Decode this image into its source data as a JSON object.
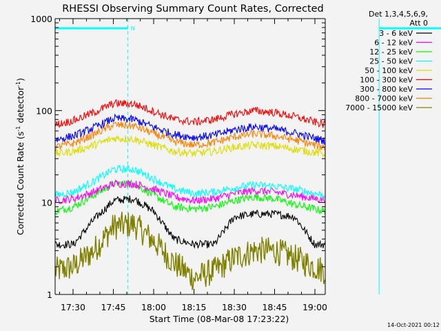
{
  "chart_data": {
    "type": "line",
    "title": "RHESSI Observing Summary Count Rates, Corrected",
    "xlabel": "Start Time (08-Mar-08 17:23:22)",
    "ylabel_main": "Corrected Count Rate (s",
    "ylabel_sup1": "-1",
    "ylabel_mid": " detector",
    "ylabel_sup2": "-1",
    "ylabel_end": ")",
    "ylabel_plain": "Corrected Count Rate (s-1 detector-1)",
    "yscale": "log",
    "ylim": [
      1,
      1000
    ],
    "xlim_minutes": [
      -4.6,
      62.6
    ],
    "x_ticks": [
      {
        "label": "17:30",
        "minutes": 0
      },
      {
        "label": "17:45",
        "minutes": 15
      },
      {
        "label": "18:00",
        "minutes": 30
      },
      {
        "label": "18:15",
        "minutes": 45
      },
      {
        "label": "18:30",
        "minutes": 60
      },
      {
        "label": "18:45",
        "minutes": 75
      },
      {
        "label": "19:00",
        "minutes": 90
      }
    ],
    "y_ticks": [
      {
        "label": "1",
        "value": 1
      },
      {
        "label": "10",
        "value": 10
      },
      {
        "label": "100",
        "value": 100
      },
      {
        "label": "1000",
        "value": 1000
      }
    ],
    "legend_title": [
      "Det 1,3,4,5,6,9,",
      "Att 0"
    ],
    "legend_position": "top-right",
    "series": [
      {
        "name": "3 - 6 keV",
        "color": "#000000",
        "x": [
          -4.6,
          0,
          5,
          10,
          15,
          20,
          25,
          30,
          35,
          40,
          45,
          50,
          55,
          60,
          62.6
        ],
        "values": [
          3.5,
          3.5,
          6.5,
          10.5,
          11,
          8,
          4,
          3.5,
          3.5,
          7,
          7.5,
          7.5,
          7,
          3.5,
          3.5
        ]
      },
      {
        "name": "6 - 12 keV",
        "color": "#ff00ff",
        "x": [
          -4.6,
          0,
          5,
          10,
          15,
          20,
          25,
          30,
          35,
          40,
          45,
          50,
          55,
          60,
          62.6
        ],
        "values": [
          10.5,
          11,
          13,
          16,
          16,
          14,
          11.5,
          10.5,
          11,
          12.5,
          13.5,
          13,
          12,
          11,
          11
        ]
      },
      {
        "name": "12 - 25 keV",
        "color": "#00ff00",
        "x": [
          -4.6,
          0,
          5,
          10,
          15,
          20,
          25,
          30,
          35,
          40,
          45,
          50,
          55,
          60,
          62.6
        ],
        "values": [
          8,
          9,
          12,
          16,
          16,
          12,
          9,
          8.5,
          9,
          10.5,
          11.5,
          11,
          9.5,
          8.5,
          8
        ]
      },
      {
        "name": "25 - 50 keV",
        "color": "#00ffff",
        "x": [
          -4.6,
          0,
          5,
          10,
          15,
          20,
          25,
          30,
          35,
          40,
          45,
          50,
          55,
          60,
          62.6
        ],
        "values": [
          12,
          13,
          17,
          23,
          23,
          18,
          14,
          12.5,
          13,
          14.5,
          15.5,
          15,
          14,
          12.5,
          12
        ]
      },
      {
        "name": "50 - 100 keV",
        "color": "#dddd00",
        "x": [
          -4.6,
          0,
          5,
          10,
          15,
          20,
          25,
          30,
          35,
          40,
          45,
          50,
          55,
          60,
          62.6
        ],
        "values": [
          34,
          36,
          42,
          50,
          49,
          42,
          36,
          34,
          36,
          40,
          42,
          41,
          38,
          35,
          34
        ]
      },
      {
        "name": "100 - 300 keV",
        "color": "#ff0000",
        "x": [
          -4.6,
          0,
          5,
          10,
          15,
          20,
          25,
          30,
          35,
          40,
          45,
          50,
          55,
          60,
          62.6
        ],
        "values": [
          70,
          78,
          95,
          120,
          118,
          98,
          80,
          75,
          80,
          92,
          100,
          95,
          86,
          75,
          70
        ]
      },
      {
        "name": "300 - 800 keV",
        "color": "#0000ff",
        "x": [
          -4.6,
          0,
          5,
          10,
          15,
          20,
          25,
          30,
          35,
          40,
          45,
          50,
          55,
          60,
          62.6
        ],
        "values": [
          48,
          53,
          65,
          82,
          80,
          66,
          55,
          51,
          54,
          62,
          67,
          63,
          57,
          50,
          47
        ]
      },
      {
        "name": "800 - 7000 keV",
        "color": "#ff8000",
        "x": [
          -4.6,
          0,
          5,
          10,
          15,
          20,
          25,
          30,
          35,
          40,
          45,
          50,
          55,
          60,
          62.6
        ],
        "values": [
          40,
          44,
          55,
          70,
          68,
          56,
          46,
          42,
          45,
          52,
          56,
          53,
          48,
          42,
          40
        ]
      },
      {
        "name": "7000 - 15000 keV",
        "color": "#808000",
        "x": [
          -4.6,
          0,
          5,
          10,
          15,
          20,
          25,
          30,
          35,
          40,
          45,
          50,
          55,
          60,
          62.6
        ],
        "values": [
          1.8,
          2,
          3,
          5.5,
          5.8,
          3.8,
          2.2,
          1.5,
          1.8,
          2.5,
          3,
          3,
          2.5,
          2,
          1.8
        ]
      }
    ],
    "vertical_lines": [
      {
        "minutes": -4.6,
        "style": "solid",
        "color": "#00ffff"
      },
      {
        "minutes": 13.5,
        "style": "dashed",
        "color": "#00ffff"
      },
      {
        "minutes": 76,
        "style": "solid",
        "color": "#00ffff"
      },
      {
        "minutes": 93.5,
        "style": "dashed",
        "color": "#00ffff"
      }
    ],
    "intervals": [
      {
        "start_minutes": -4.6,
        "end_minutes": 13.5,
        "label": "N",
        "color": "#00ffff"
      },
      {
        "start_minutes": 76,
        "end_minutes": 93.5,
        "label": "",
        "color": "#00ffff"
      }
    ],
    "footer_timestamp": "14-Oct-2021 00:12",
    "grid": false
  }
}
